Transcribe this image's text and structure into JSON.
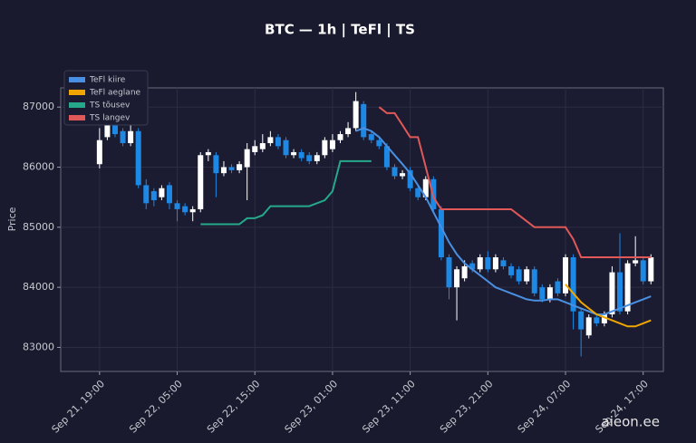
{
  "chart_data": {
    "type": "candlestick",
    "title": "BTC — 1h  |  TeFl  |  TS",
    "y_label": "Price",
    "watermark": "aieon.ee",
    "up_color": "#ffffff",
    "down_color": "#1e88e5",
    "grid": true,
    "legend_position": "upper left",
    "xlim": [
      14,
      91.6
    ],
    "ylim": [
      82600,
      87320
    ],
    "yticks": [
      83000,
      84000,
      85000,
      86000,
      87000
    ],
    "xticks": [
      {
        "value": 19,
        "label": "Sep 21, 19:00"
      },
      {
        "value": 29,
        "label": "Sep 22, 05:00"
      },
      {
        "value": 39,
        "label": "Sep 22, 15:00"
      },
      {
        "value": 49,
        "label": "Sep 23, 01:00"
      },
      {
        "value": 59,
        "label": "Sep 23, 11:00"
      },
      {
        "value": 69,
        "label": "Sep 23, 21:00"
      },
      {
        "value": 79,
        "label": "Sep 24, 07:00"
      },
      {
        "value": 89,
        "label": "Sep 24, 17:00"
      }
    ],
    "x": [
      19,
      20,
      21,
      22,
      23,
      24,
      25,
      26,
      27,
      28,
      29,
      30,
      31,
      32,
      33,
      34,
      35,
      36,
      37,
      38,
      39,
      40,
      41,
      42,
      43,
      44,
      45,
      46,
      47,
      48,
      49,
      50,
      51,
      52,
      53,
      54,
      55,
      56,
      57,
      58,
      59,
      60,
      61,
      62,
      63,
      64,
      65,
      66,
      67,
      68,
      69,
      70,
      71,
      72,
      73,
      74,
      75,
      76,
      77,
      78,
      79,
      80,
      81,
      82,
      83,
      84,
      85,
      86,
      87,
      88,
      89,
      90
    ],
    "open": [
      86050,
      86500,
      86850,
      86600,
      86400,
      86600,
      85700,
      85600,
      85500,
      85700,
      85400,
      85350,
      85250,
      85300,
      86200,
      86200,
      85900,
      86000,
      85950,
      86000,
      86250,
      86300,
      86400,
      86500,
      86450,
      86200,
      86250,
      86200,
      86100,
      86200,
      86300,
      86450,
      86550,
      86650,
      87050,
      86550,
      86450,
      86350,
      86000,
      85850,
      85950,
      85650,
      85500,
      85800,
      85300,
      84500,
      84000,
      84150,
      84400,
      84300,
      84500,
      84300,
      84450,
      84350,
      84300,
      84100,
      84300,
      84000,
      83800,
      84100,
      83900,
      84500,
      83600,
      83200,
      83500,
      83400,
      83550,
      84250,
      83600,
      84400,
      84450,
      84100
    ],
    "high": [
      86650,
      87100,
      86900,
      86650,
      86700,
      86650,
      85800,
      85650,
      85700,
      85750,
      85450,
      85400,
      85350,
      86250,
      86300,
      86250,
      86100,
      86050,
      86100,
      86400,
      86450,
      86550,
      86600,
      86550,
      86500,
      86300,
      86300,
      86250,
      86250,
      86500,
      86550,
      86600,
      86750,
      87250,
      87100,
      86600,
      86500,
      86400,
      86050,
      85950,
      86000,
      85700,
      85850,
      85850,
      85350,
      84550,
      84350,
      84450,
      84450,
      84550,
      84600,
      84550,
      84500,
      84400,
      84350,
      84350,
      84350,
      84050,
      84050,
      84150,
      84550,
      84550,
      83650,
      83550,
      83550,
      83600,
      84350,
      84900,
      84450,
      84850,
      84500,
      84550
    ],
    "low": [
      85980,
      86450,
      86500,
      86350,
      86350,
      85650,
      85300,
      85350,
      85450,
      85300,
      85100,
      85200,
      85100,
      85250,
      86100,
      85500,
      85850,
      85900,
      85900,
      85450,
      86200,
      86250,
      86350,
      86300,
      86150,
      86150,
      86100,
      86050,
      86050,
      86150,
      86250,
      86400,
      86500,
      86600,
      86450,
      86400,
      86300,
      85950,
      85800,
      85800,
      85600,
      85450,
      85450,
      85250,
      84450,
      83800,
      83450,
      84100,
      84250,
      84250,
      84250,
      84250,
      84300,
      84150,
      84050,
      84050,
      83850,
      83750,
      83750,
      83850,
      83850,
      83300,
      82850,
      83150,
      83350,
      83350,
      83500,
      83550,
      83550,
      84350,
      84050,
      84050
    ],
    "close": [
      86450,
      86850,
      86550,
      86400,
      86600,
      85700,
      85400,
      85450,
      85650,
      85400,
      85300,
      85250,
      85300,
      86200,
      86250,
      85900,
      86000,
      85950,
      86050,
      86300,
      86350,
      86400,
      86500,
      86350,
      86200,
      86250,
      86150,
      86100,
      86200,
      86450,
      86450,
      86550,
      86650,
      87100,
      86500,
      86450,
      86350,
      86000,
      85850,
      85900,
      85650,
      85500,
      85800,
      85300,
      84500,
      84000,
      84300,
      84350,
      84300,
      84500,
      84300,
      84500,
      84350,
      84200,
      84100,
      84300,
      83900,
      83800,
      84000,
      83900,
      84500,
      83600,
      83300,
      83500,
      83400,
      83550,
      84250,
      83600,
      84400,
      84450,
      84100,
      84500
    ],
    "lines": [
      {
        "name": "TeFl kiire",
        "color": "#4a90e2",
        "x": [
          52,
          53,
          54,
          55,
          56,
          57,
          58,
          59,
          60,
          61,
          62,
          63,
          64,
          65,
          66,
          67,
          68,
          69,
          70,
          71,
          72,
          73,
          74,
          75,
          76,
          77,
          78,
          79,
          80,
          81,
          82,
          83,
          84,
          85,
          86,
          87,
          88,
          89,
          90
        ],
        "values": [
          86600,
          86650,
          86600,
          86500,
          86350,
          86200,
          86050,
          85900,
          85700,
          85500,
          85250,
          85000,
          84750,
          84550,
          84400,
          84300,
          84200,
          84100,
          84000,
          83950,
          83900,
          83850,
          83800,
          83780,
          83780,
          83800,
          83800,
          83750,
          83700,
          83650,
          83600,
          83550,
          83550,
          83600,
          83650,
          83700,
          83750,
          83800,
          83850
        ]
      },
      {
        "name": "TeFl aeglane",
        "color": "#f0a500",
        "x": [
          79,
          80,
          81,
          82,
          83,
          84,
          85,
          86,
          87,
          88,
          89,
          90
        ],
        "values": [
          84050,
          83900,
          83750,
          83650,
          83550,
          83500,
          83450,
          83400,
          83350,
          83350,
          83400,
          83450
        ]
      },
      {
        "name": "TS tõusev",
        "color": "#26a98b",
        "x": [
          32,
          33,
          34,
          35,
          36,
          37,
          38,
          39,
          40,
          41,
          42,
          43,
          44,
          45,
          46,
          47,
          48,
          49,
          50,
          51,
          52,
          53,
          54
        ],
        "values": [
          85050,
          85050,
          85050,
          85050,
          85050,
          85050,
          85150,
          85150,
          85200,
          85350,
          85350,
          85350,
          85350,
          85350,
          85350,
          85400,
          85450,
          85600,
          86100,
          86100,
          86100,
          86100,
          86100
        ]
      },
      {
        "name": "TS langev",
        "color": "#e05858",
        "x": [
          55,
          56,
          57,
          58,
          59,
          60,
          61,
          62,
          63,
          64,
          65,
          66,
          67,
          68,
          69,
          70,
          71,
          72,
          73,
          74,
          75,
          76,
          77,
          78,
          79,
          80,
          81,
          82,
          83,
          84,
          85,
          86,
          87,
          88,
          89,
          90
        ],
        "values": [
          87000,
          86900,
          86900,
          86700,
          86500,
          86500,
          86000,
          85500,
          85300,
          85300,
          85300,
          85300,
          85300,
          85300,
          85300,
          85300,
          85300,
          85300,
          85200,
          85100,
          85000,
          85000,
          85000,
          85000,
          85000,
          84800,
          84500,
          84500,
          84500,
          84500,
          84500,
          84500,
          84500,
          84500,
          84500,
          84500
        ]
      }
    ]
  }
}
